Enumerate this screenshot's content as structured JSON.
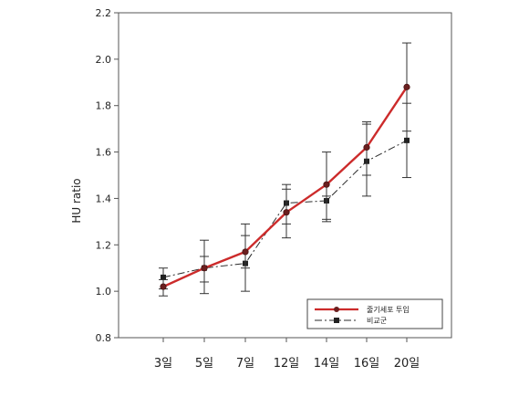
{
  "chart_data": {
    "type": "line",
    "title": "",
    "xlabel": "",
    "ylabel": "HU ratio",
    "categories": [
      "3일",
      "5일",
      "7일",
      "12일",
      "14일",
      "16일",
      "20일"
    ],
    "ylim": [
      0.8,
      2.2
    ],
    "yticks": [
      "0.8",
      "1.0",
      "1.2",
      "1.4",
      "1.6",
      "1.8",
      "2.0",
      "2.2"
    ],
    "grid": false,
    "legend_position": "bottom-right",
    "series": [
      {
        "name": "줄기세포 투입",
        "color": "#cc2b2b",
        "marker": "circle",
        "line_style": "solid",
        "values": [
          1.02,
          1.1,
          1.17,
          1.34,
          1.46,
          1.62,
          1.88
        ],
        "error_low": [
          0.98,
          1.04,
          1.1,
          1.23,
          1.31,
          1.5,
          1.69
        ],
        "error_high": [
          1.05,
          1.15,
          1.24,
          1.44,
          1.6,
          1.73,
          2.07
        ]
      },
      {
        "name": "비교군",
        "color": "#2a2a2a",
        "marker": "square",
        "line_style": "dashdot",
        "values": [
          1.06,
          1.1,
          1.12,
          1.38,
          1.39,
          1.56,
          1.65
        ],
        "error_low": [
          1.01,
          0.99,
          1.0,
          1.29,
          1.3,
          1.41,
          1.49
        ],
        "error_high": [
          1.1,
          1.22,
          1.29,
          1.46,
          1.41,
          1.72,
          1.81
        ]
      }
    ]
  }
}
